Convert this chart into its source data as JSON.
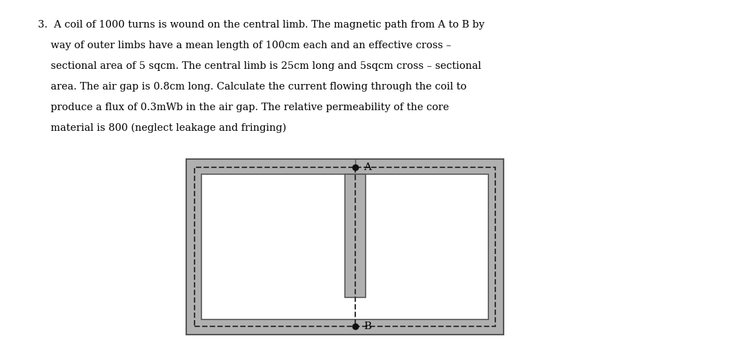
{
  "bg_color": "#ffffff",
  "core_color": "#b0b0b0",
  "inner_bg": "#ffffff",
  "dashed_color": "#333333",
  "text_color": "#000000",
  "dot_color": "#111111",
  "line_color": "#555555",
  "text_main": "3.  A coil of 1000 turns is wound on the central limb. The magnetic path from A to B by\n    way of outer limbs have a mean length of 100cm each and an effective cross –\n    sectional area of 5 sqcm. The central limb is 25cm long and 5sqcm cross – sectional\n    area. The air gap is 0.8cm long. Calculate the current flowing through the coil to\n    produce a flux of 0.3mWb in the air gap. The relative permeability of the core\n    material is 800 (neglect leakage and fringing)",
  "label_A": "A",
  "label_B": "B",
  "fig_width": 10.8,
  "fig_height": 5.04
}
